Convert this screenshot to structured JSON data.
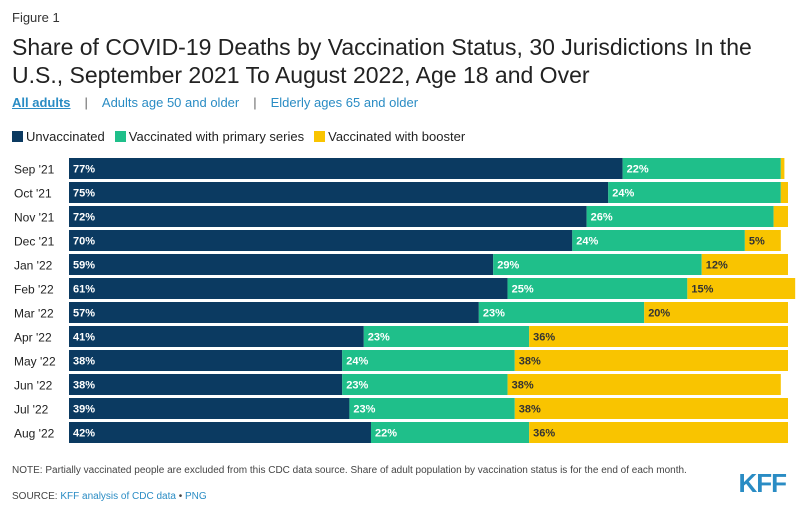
{
  "figure_label": "Figure 1",
  "title": "Share of COVID-19 Deaths by Vaccination Status, 30 Jurisdictions In the U.S., September 2021 To August 2022, Age 18 and Over",
  "tabs": [
    {
      "label": "All adults",
      "active": true
    },
    {
      "label": "Adults age 50 and older",
      "active": false
    },
    {
      "label": "Elderly ages 65 and older",
      "active": false
    }
  ],
  "tab_separator": "|",
  "colors": {
    "unvaccinated": "#0b3a61",
    "primary": "#1fbf8a",
    "booster": "#f9c400",
    "accent": "#2a8cc4"
  },
  "chart_data": {
    "type": "bar",
    "orientation": "horizontal",
    "stacked": true,
    "title": "Share of COVID-19 Deaths by Vaccination Status, 30 Jurisdictions In the U.S., September 2021 To August 2022, Age 18 and Over",
    "categories": [
      "Sep '21",
      "Oct '21",
      "Nov '21",
      "Dec '21",
      "Jan '22",
      "Feb '22",
      "Mar '22",
      "Apr '22",
      "May '22",
      "Jun '22",
      "Jul '22",
      "Aug '22"
    ],
    "series": [
      {
        "name": "Unvaccinated",
        "color": "#0b3a61",
        "values": [
          77,
          75,
          72,
          70,
          59,
          61,
          57,
          41,
          38,
          38,
          39,
          42
        ],
        "labels": [
          "77%",
          "75%",
          "72%",
          "70%",
          "59%",
          "61%",
          "57%",
          "41%",
          "38%",
          "38%",
          "39%",
          "42%"
        ]
      },
      {
        "name": "Vaccinated with primary series",
        "color": "#1fbf8a",
        "values": [
          22,
          24,
          26,
          24,
          29,
          25,
          23,
          23,
          24,
          23,
          23,
          22
        ],
        "labels": [
          "22%",
          "24%",
          "26%",
          "24%",
          "29%",
          "25%",
          "23%",
          "23%",
          "24%",
          "23%",
          "23%",
          "22%"
        ]
      },
      {
        "name": "Vaccinated with booster",
        "color": "#f9c400",
        "values": [
          0.5,
          1,
          2,
          5,
          12,
          15,
          20,
          36,
          38,
          38,
          38,
          36
        ],
        "labels": [
          "",
          "",
          "",
          "5%",
          "12%",
          "15%",
          "20%",
          "36%",
          "38%",
          "38%",
          "38%",
          "36%"
        ]
      }
    ],
    "xlim": [
      0,
      100
    ],
    "legend_position": "top-left",
    "grid": false
  },
  "note": "NOTE: Partially vaccinated people are excluded from this CDC data source. Share of adult population by vaccination status is for the end of each month.",
  "source": {
    "prefix": "SOURCE: ",
    "link1": "KFF analysis of CDC data",
    "bullet": " • ",
    "link2": "PNG"
  },
  "logo_text": "KFF"
}
